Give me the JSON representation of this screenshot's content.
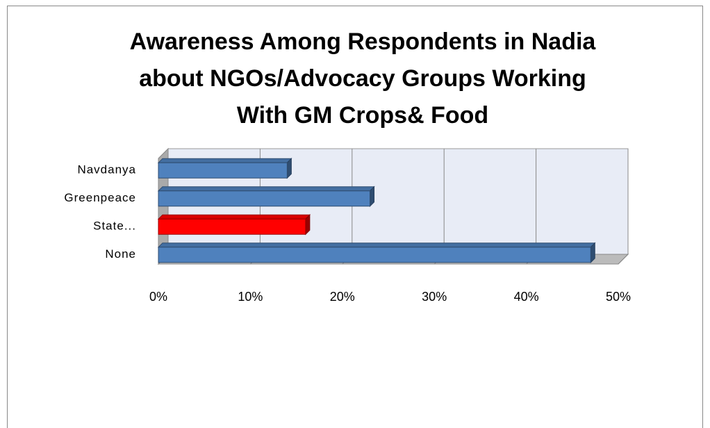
{
  "chart_data": {
    "type": "bar",
    "orientation": "horizontal",
    "title": [
      "Awareness Among Respondents in Nadia",
      "about NGOs/Advocacy Groups Working",
      "With GM Crops& Food"
    ],
    "categories": [
      "Navdanya",
      "Greenpeace",
      "State...",
      "None"
    ],
    "values": [
      14,
      23,
      16,
      47
    ],
    "colors": [
      "#4f81bd",
      "#4f81bd",
      "#ff0000",
      "#4f81bd"
    ],
    "xlim": [
      0,
      50
    ],
    "xticks": [
      {
        "value": 0,
        "label": "0%"
      },
      {
        "value": 10,
        "label": "10%"
      },
      {
        "value": 20,
        "label": "20%"
      },
      {
        "value": 30,
        "label": "30%"
      },
      {
        "value": 40,
        "label": "40%"
      },
      {
        "value": 50,
        "label": "50%"
      }
    ],
    "grid": true
  }
}
